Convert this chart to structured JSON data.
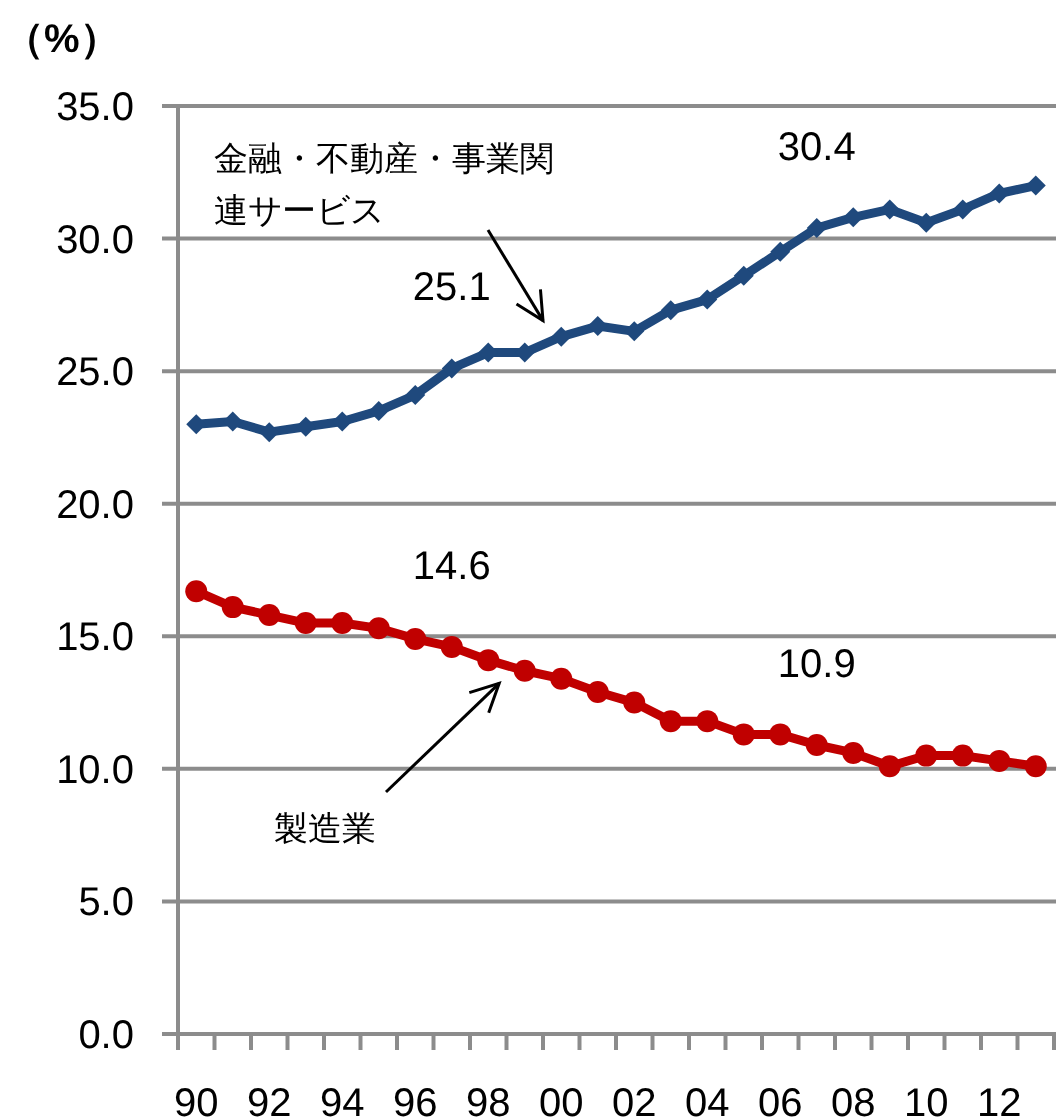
{
  "chart_data": {
    "type": "line",
    "ylabel": "（%）",
    "categories": [
      "90",
      null,
      "92",
      null,
      "94",
      null,
      "96",
      null,
      "98",
      null,
      "00",
      null,
      "02",
      null,
      "04",
      null,
      "06",
      null,
      "08",
      null,
      "10",
      null,
      "12",
      null
    ],
    "series": [
      {
        "name": "金融・不動産・事業関連サービス",
        "color": "#1f497d",
        "marker": "diamond",
        "values": [
          23.0,
          23.1,
          22.7,
          22.9,
          23.1,
          23.5,
          24.1,
          25.1,
          25.7,
          25.7,
          26.3,
          26.7,
          26.5,
          27.3,
          27.7,
          28.6,
          29.5,
          30.4,
          30.8,
          31.1,
          30.6,
          31.1,
          31.7,
          32.0
        ],
        "value_labels": [
          null,
          null,
          null,
          null,
          null,
          null,
          null,
          "25.1",
          null,
          null,
          null,
          null,
          null,
          null,
          null,
          null,
          null,
          "30.4",
          null,
          null,
          null,
          null,
          null,
          null
        ]
      },
      {
        "name": "製造業",
        "color": "#c00000",
        "marker": "circle",
        "values": [
          16.7,
          16.1,
          15.8,
          15.5,
          15.5,
          15.3,
          14.9,
          14.6,
          14.1,
          13.7,
          13.4,
          12.9,
          12.5,
          11.8,
          11.8,
          11.3,
          11.3,
          10.9,
          10.6,
          10.1,
          10.5,
          10.5,
          10.3,
          10.1
        ],
        "value_labels": [
          null,
          null,
          null,
          null,
          null,
          null,
          null,
          "14.6",
          null,
          null,
          null,
          null,
          null,
          null,
          null,
          null,
          null,
          "10.9",
          null,
          null,
          null,
          null,
          null,
          null
        ]
      }
    ],
    "ylim": [
      0,
      35
    ],
    "yticks": [
      {
        "value": 0,
        "label": "0.0"
      },
      {
        "value": 5,
        "label": "5.0"
      },
      {
        "value": 10,
        "label": "10.0"
      },
      {
        "value": 15,
        "label": "15.0"
      },
      {
        "value": 20,
        "label": "20.0"
      },
      {
        "value": 25,
        "label": "25.0"
      },
      {
        "value": 30,
        "label": "30.0"
      },
      {
        "value": 35,
        "label": "35.0"
      }
    ],
    "grid": "y"
  }
}
